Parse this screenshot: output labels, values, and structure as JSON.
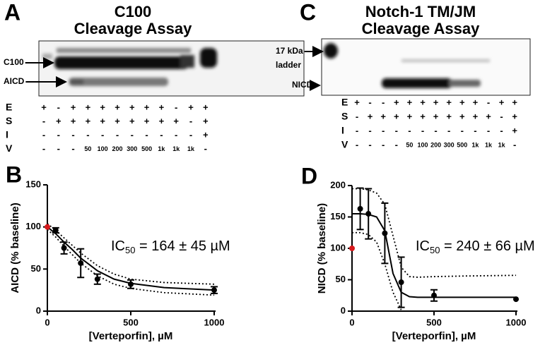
{
  "panels": [
    {
      "letter": "A",
      "title": [
        "C100",
        "Cleavage Assay"
      ],
      "band_labels": [
        "C100",
        "AICD"
      ],
      "rows": [
        {
          "label": "E",
          "lanes": [
            "+",
            "-",
            "+",
            "+",
            "+",
            "+",
            "+",
            "+",
            "+",
            "-",
            "+",
            "+"
          ]
        },
        {
          "label": "S",
          "lanes": [
            "-",
            "+",
            "+",
            "+",
            "+",
            "+",
            "+",
            "+",
            "+",
            "+",
            "-",
            "+"
          ]
        },
        {
          "label": "I",
          "lanes": [
            "-",
            "-",
            "-",
            "-",
            "-",
            "-",
            "-",
            "-",
            "-",
            "-",
            "-",
            "+"
          ]
        },
        {
          "label": "V",
          "lanes": [
            "-",
            "-",
            "-",
            "50",
            "100",
            "200",
            "300",
            "500",
            "1k",
            "1k",
            "1k",
            "-"
          ]
        }
      ]
    },
    {
      "letter": "C",
      "title": [
        "Notch-1 TM/JM",
        "Cleavage Assay"
      ],
      "band_labels": [
        "17 kDa",
        "ladder",
        "NICD"
      ],
      "rows": [
        {
          "label": "E",
          "lanes": [
            "+",
            "-",
            "-",
            "+",
            "+",
            "+",
            "+",
            "+",
            "+",
            "+",
            "-",
            "+",
            "+"
          ]
        },
        {
          "label": "S",
          "lanes": [
            "-",
            "+",
            "+",
            "+",
            "+",
            "+",
            "+",
            "+",
            "+",
            "+",
            "+",
            "-",
            "+"
          ]
        },
        {
          "label": "I",
          "lanes": [
            "-",
            "-",
            "-",
            "-",
            "-",
            "-",
            "-",
            "-",
            "-",
            "-",
            "-",
            "-",
            "+"
          ]
        },
        {
          "label": "V",
          "lanes": [
            "-",
            "-",
            "-",
            "-",
            "50",
            "100",
            "200",
            "300",
            "500",
            "1k",
            "1k",
            "1k",
            "-"
          ]
        }
      ]
    }
  ],
  "chart_data": [
    {
      "type": "scatter",
      "panel": "B",
      "ylabel": "AICD (% baseline)",
      "xlabel": "[Verteporfin], µM",
      "annotation": {
        "main": "IC",
        "sub": "50",
        "rest": " = 164 ± 45 µM"
      },
      "xlim": [
        0,
        1000
      ],
      "ylim": [
        0,
        150
      ],
      "xticks": [
        0,
        500,
        1000
      ],
      "yticks": [
        0,
        50,
        100,
        150
      ],
      "x": [
        0,
        50,
        100,
        200,
        300,
        500,
        1000
      ],
      "values": [
        100,
        96,
        75,
        57,
        38,
        32,
        25
      ],
      "errors": [
        null,
        3,
        7,
        17,
        6,
        5,
        4
      ],
      "point_colors": [
        "#d7191c",
        "#000000",
        "#000000",
        "#000000",
        "#000000",
        "#000000",
        "#000000"
      ],
      "fit_x": [
        0,
        50,
        100,
        150,
        200,
        300,
        400,
        500,
        700,
        1000
      ],
      "fit": [
        100,
        92,
        82,
        73,
        63,
        48,
        38,
        33,
        28,
        25
      ],
      "ci_upper": [
        104,
        96,
        87,
        78,
        69,
        54,
        44,
        38,
        34,
        32
      ],
      "ci_lower": [
        97,
        88,
        77,
        67,
        57,
        42,
        32,
        27,
        22,
        19
      ]
    },
    {
      "type": "scatter",
      "panel": "D",
      "ylabel": "NICD (% baseline)",
      "xlabel": "[Verteporfin], µM",
      "annotation": {
        "main": "IC",
        "sub": "50",
        "rest": " = 240 ± 66 µM"
      },
      "xlim": [
        0,
        1000
      ],
      "ylim": [
        0,
        200
      ],
      "xticks": [
        0,
        500,
        1000
      ],
      "yticks": [
        0,
        50,
        100,
        150,
        200
      ],
      "x": [
        0,
        50,
        100,
        200,
        300,
        500,
        1000
      ],
      "values": [
        100,
        163,
        155,
        124,
        46,
        25,
        19
      ],
      "errors": [
        null,
        33,
        40,
        48,
        40,
        9,
        null
      ],
      "point_colors": [
        "#d7191c",
        "#000000",
        "#000000",
        "#000000",
        "#000000",
        "#000000",
        "#000000"
      ],
      "fit_x": [
        0,
        50,
        100,
        150,
        200,
        250,
        300,
        350,
        400,
        500,
        700,
        1000
      ],
      "fit": [
        155,
        155,
        154,
        150,
        128,
        60,
        30,
        23,
        22,
        22,
        22,
        22
      ],
      "ci_upper": [
        195,
        195,
        193,
        188,
        170,
        120,
        70,
        55,
        54,
        55,
        56,
        57
      ],
      "ci_lower": [
        125,
        125,
        122,
        110,
        75,
        30,
        2,
        null,
        null,
        null,
        null,
        null
      ]
    }
  ]
}
